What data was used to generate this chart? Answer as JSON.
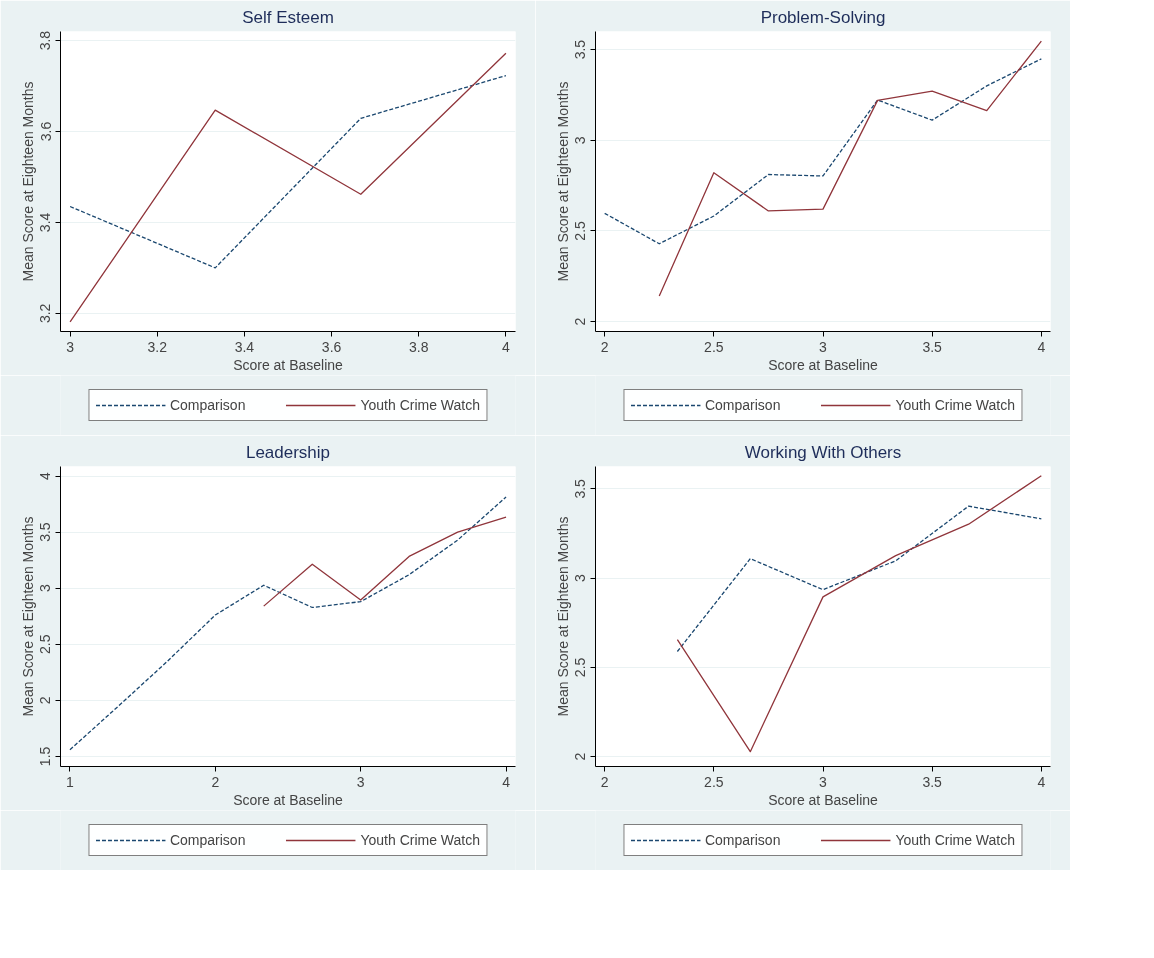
{
  "chart_data": [
    {
      "type": "line",
      "title": "Self Esteem",
      "xlabel": "Score at Baseline",
      "ylabel": "Mean Score at Eighteen Months",
      "xlim": [
        2.978,
        4.022
      ],
      "ylim": [
        3.16,
        3.82
      ],
      "xticks": [
        3,
        3.2,
        3.4,
        3.6,
        3.8,
        4
      ],
      "yticks": [
        3.2,
        3.4,
        3.6,
        3.8
      ],
      "grid": "y",
      "legend": "bottom",
      "series": [
        {
          "name": "Comparison",
          "color": "#1a476f",
          "line_style": "dashed",
          "x": [
            3,
            3.333,
            3.667,
            4
          ],
          "values": [
            3.435,
            3.3,
            3.629,
            3.723
          ]
        },
        {
          "name": "Youth Crime Watch",
          "color": "#90353b",
          "line_style": "solid",
          "x": [
            3,
            3.333,
            3.667,
            4
          ],
          "values": [
            3.181,
            3.647,
            3.462,
            3.772
          ]
        }
      ]
    },
    {
      "type": "line",
      "title": "Problem-Solving",
      "xlabel": "Score at Baseline",
      "ylabel": "Mean Score at Eighteen Months",
      "xlim": [
        1.958,
        4.042
      ],
      "ylim": [
        1.945,
        3.6
      ],
      "xticks": [
        2,
        2.5,
        3,
        3.5,
        4
      ],
      "yticks": [
        2,
        2.5,
        3,
        3.5
      ],
      "grid": "y",
      "legend": "bottom",
      "series": [
        {
          "name": "Comparison",
          "color": "#1a476f",
          "line_style": "dashed",
          "x": [
            2,
            2.25,
            2.5,
            2.75,
            3,
            3.25,
            3.5,
            3.75,
            4
          ],
          "values": [
            2.597,
            2.429,
            2.582,
            2.811,
            2.803,
            3.222,
            3.111,
            3.3,
            3.449
          ]
        },
        {
          "name": "Youth Crime Watch",
          "color": "#90353b",
          "line_style": "solid",
          "x": [
            2.25,
            2.5,
            2.75,
            3,
            3.25,
            3.5,
            3.75,
            4
          ],
          "values": [
            2.141,
            2.821,
            2.61,
            2.62,
            3.22,
            3.271,
            3.164,
            3.547
          ]
        }
      ]
    },
    {
      "type": "line",
      "title": "Leadership",
      "xlabel": "Score at Baseline",
      "ylabel": "Mean Score at Eighteen Months",
      "xlim": [
        0.935,
        4.065
      ],
      "ylim": [
        1.41,
        4.085
      ],
      "xticks": [
        1,
        2,
        3,
        4
      ],
      "yticks": [
        1.5,
        2,
        2.5,
        3,
        3.5,
        4
      ],
      "grid": "y",
      "legend": "bottom",
      "series": [
        {
          "name": "Comparison",
          "color": "#1a476f",
          "line_style": "dashed",
          "x": [
            1,
            1.333,
            1.667,
            2,
            2.333,
            2.667,
            3,
            3.333,
            3.667,
            4
          ],
          "values": [
            1.56,
            1.948,
            2.344,
            2.761,
            3.026,
            2.828,
            2.88,
            3.12,
            3.429,
            3.813
          ]
        },
        {
          "name": "Youth Crime Watch",
          "color": "#90353b",
          "line_style": "solid",
          "x": [
            2.333,
            2.667,
            3,
            3.333,
            3.667,
            4
          ],
          "values": [
            2.84,
            3.213,
            2.895,
            3.283,
            3.5,
            3.633
          ]
        }
      ]
    },
    {
      "type": "line",
      "title": "Working With Others",
      "xlabel": "Score at Baseline",
      "ylabel": "Mean Score at Eighteen Months",
      "xlim": [
        1.958,
        4.042
      ],
      "ylim": [
        1.945,
        3.625
      ],
      "xticks": [
        2,
        2.5,
        3,
        3.5,
        4
      ],
      "yticks": [
        2,
        2.5,
        3,
        3.5
      ],
      "grid": "y",
      "legend": "bottom",
      "series": [
        {
          "name": "Comparison",
          "color": "#1a476f",
          "line_style": "dashed",
          "x": [
            2.333,
            2.667,
            3,
            3.333,
            3.667,
            4
          ],
          "values": [
            2.589,
            3.109,
            2.935,
            3.097,
            3.403,
            3.332
          ]
        },
        {
          "name": "Youth Crime Watch",
          "color": "#90353b",
          "line_style": "solid",
          "x": [
            2.333,
            2.667,
            3,
            3.333,
            3.667,
            4
          ],
          "values": [
            2.656,
            2.028,
            2.895,
            3.126,
            3.302,
            3.573
          ]
        }
      ]
    }
  ]
}
